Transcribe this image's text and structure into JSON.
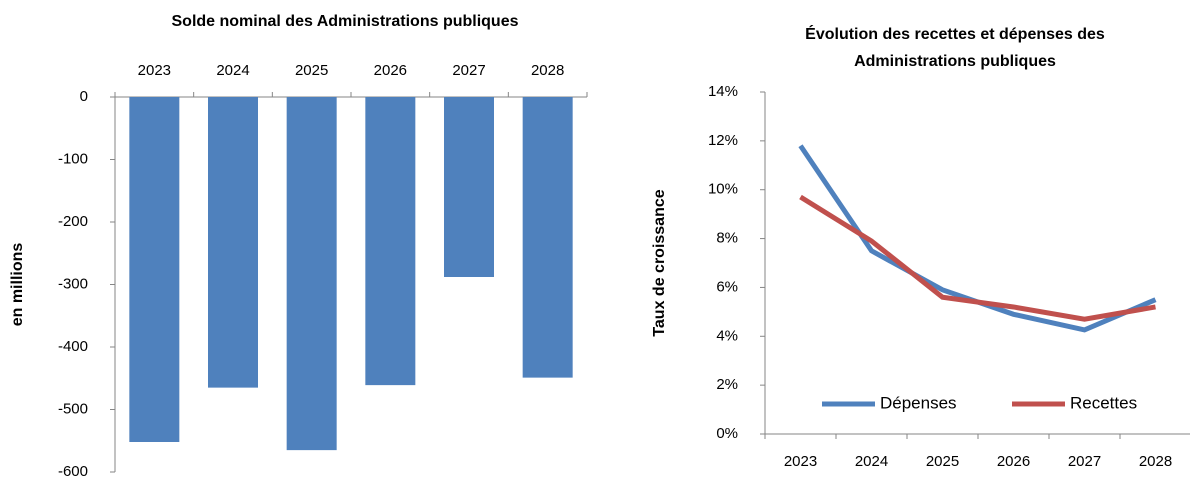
{
  "chart_data": [
    {
      "type": "bar",
      "title": "Solde nominal des Administrations publiques",
      "y_label": "en millions",
      "categories": [
        "2023",
        "2024",
        "2025",
        "2026",
        "2027",
        "2028"
      ],
      "values": [
        -552,
        -465,
        -565,
        -461,
        -288,
        -449
      ],
      "color": "#4f81bd",
      "ylim": [
        -600,
        0
      ],
      "yticks": [
        0,
        -100,
        -200,
        -300,
        -400,
        -500,
        -600
      ],
      "x_axis_position": "top"
    },
    {
      "type": "line",
      "title": [
        "Évolution des recettes et dépenses des",
        "Administrations publiques"
      ],
      "y_label": "Taux de croissance",
      "categories": [
        "2023",
        "2024",
        "2025",
        "2026",
        "2027",
        "2028"
      ],
      "series": [
        {
          "name": "Dépenses",
          "color": "#4f81bd",
          "values": [
            11.8,
            7.5,
            5.9,
            4.9,
            4.26,
            5.5
          ]
        },
        {
          "name": "Recettes",
          "color": "#c0504d",
          "values": [
            9.7,
            7.9,
            5.6,
            5.2,
            4.7,
            5.2
          ]
        }
      ],
      "ylim": [
        0,
        14
      ],
      "yticks": [
        {
          "value": 0,
          "label": "0%"
        },
        {
          "value": 2,
          "label": "2%"
        },
        {
          "value": 4,
          "label": "4%"
        },
        {
          "value": 6,
          "label": "6%"
        },
        {
          "value": 8,
          "label": "8%"
        },
        {
          "value": 10,
          "label": "10%"
        },
        {
          "value": 12,
          "label": "12%"
        },
        {
          "value": 14,
          "label": "14%"
        }
      ],
      "legend": "bottom"
    }
  ]
}
